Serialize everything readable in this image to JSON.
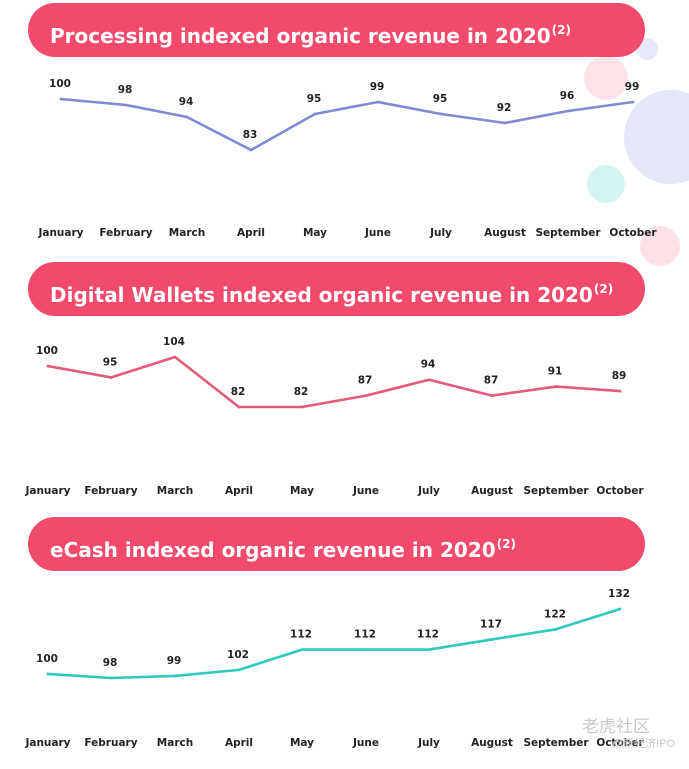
{
  "colors": {
    "banner": "#f24a6b",
    "processing_line": "#7f8ad2",
    "wallets_line": "#e35b78",
    "ecash_line": "#2ec9bf"
  },
  "chart_data": [
    {
      "type": "line",
      "title": "Processing indexed organic revenue in 2020",
      "title_superscript": "(2)",
      "categories": [
        "January",
        "February",
        "March",
        "April",
        "May",
        "June",
        "July",
        "August",
        "September",
        "October"
      ],
      "values": [
        100,
        98,
        94,
        83,
        95,
        99,
        95,
        92,
        96,
        99
      ],
      "color": "#7f8ad2",
      "grid": false,
      "legend": "none"
    },
    {
      "type": "line",
      "title": "Digital Wallets indexed organic revenue in 2020",
      "title_superscript": "(2)",
      "categories": [
        "January",
        "February",
        "March",
        "April",
        "May",
        "June",
        "July",
        "August",
        "September",
        "October"
      ],
      "values": [
        100,
        95,
        104,
        82,
        82,
        87,
        94,
        87,
        91,
        89
      ],
      "color": "#e35b78",
      "grid": false,
      "legend": "none"
    },
    {
      "type": "line",
      "title": "eCash indexed organic revenue in 2020",
      "title_superscript": "(2)",
      "categories": [
        "January",
        "February",
        "March",
        "April",
        "May",
        "June",
        "July",
        "August",
        "September",
        "October"
      ],
      "values": [
        100,
        98,
        99,
        102,
        112,
        112,
        112,
        117,
        122,
        132
      ],
      "color": "#2ec9bf",
      "grid": false,
      "legend": "none"
    }
  ],
  "watermark": {
    "brand": "老虎社区",
    "handle": "@新经济IPO"
  }
}
